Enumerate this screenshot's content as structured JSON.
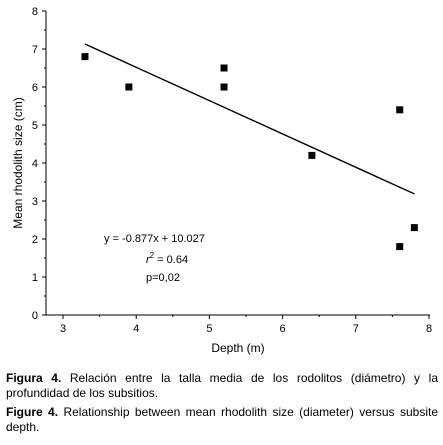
{
  "chart_data": {
    "type": "scatter",
    "xlabel": "Depth (m)",
    "ylabel": "Mean rhodolith size (cm)",
    "xlim": [
      3,
      8
    ],
    "ylim": [
      0,
      8
    ],
    "xticks": [
      "3",
      "4",
      "5",
      "6",
      "7",
      "8"
    ],
    "yticks": [
      "0",
      "1",
      "2",
      "3",
      "4",
      "5",
      "6",
      "7",
      "8"
    ],
    "grid": false,
    "points": [
      {
        "x": 3.3,
        "y": 6.8
      },
      {
        "x": 3.9,
        "y": 6.0
      },
      {
        "x": 5.2,
        "y": 6.5
      },
      {
        "x": 5.2,
        "y": 6.0
      },
      {
        "x": 6.4,
        "y": 4.2
      },
      {
        "x": 7.6,
        "y": 5.4
      },
      {
        "x": 7.6,
        "y": 1.8
      },
      {
        "x": 7.8,
        "y": 2.3
      }
    ],
    "trendline": {
      "slope": -0.877,
      "intercept": 10.027,
      "x_start": 3.3,
      "x_end": 7.8
    },
    "annotations": {
      "equation": "y = -0.877x + 10.027",
      "r2_symbol": "r",
      "r2_exp": "2",
      "r2_value": " = 0.64",
      "p": "p=0,02"
    }
  },
  "caption": {
    "es_label": "Figura 4.",
    "es_text": " Relación entre la talla media de los rodolitos (diámetro) y la profundidad de los subsitios.",
    "en_label": "Figure 4.",
    "en_text": " Relationship between mean rhodolith size (diameter) versus subsite depth."
  }
}
